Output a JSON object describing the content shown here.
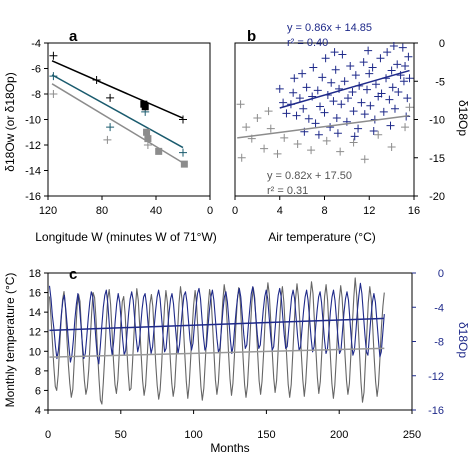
{
  "chart_data": [
    {
      "type": "scatter",
      "panel_label": "a",
      "xlabel": "Longitude W (minutes W of 71°W)",
      "ylabel": "δ18Ow (or δ18Op)",
      "xlim": [
        120,
        0
      ],
      "ylim": [
        -16,
        -4
      ],
      "xticks": [
        "120",
        "80",
        "40",
        "0"
      ],
      "yticks": [
        "-4",
        "-6",
        "-8",
        "-10",
        "-12",
        "-14",
        "-16"
      ],
      "series": [
        {
          "marker": "plus",
          "color": "#000000",
          "points": [
            [
              116,
              -5.0
            ],
            [
              84,
              -6.9
            ],
            [
              74,
              -8.3
            ],
            [
              20,
              -10.0
            ]
          ]
        },
        {
          "marker": "plus",
          "color": "#1a5b6e",
          "points": [
            [
              116,
              -6.6
            ],
            [
              74,
              -10.6
            ],
            [
              48,
              -9.4
            ],
            [
              20,
              -12.6
            ]
          ]
        },
        {
          "marker": "plus",
          "color": "#8c8c8c",
          "points": [
            [
              116,
              -8.0
            ],
            [
              76,
              -11.6
            ],
            [
              46,
              -12.0
            ]
          ]
        },
        {
          "marker": "square",
          "color": "#000000",
          "points": [
            [
              49,
              -8.8
            ],
            [
              48,
              -9.0
            ]
          ]
        },
        {
          "marker": "square",
          "color": "#8c8c8c",
          "points": [
            [
              47,
              -11.0
            ],
            [
              46,
              -11.5
            ],
            [
              38,
              -12.5
            ],
            [
              19,
              -13.5
            ]
          ]
        }
      ],
      "lines": [
        {
          "color": "#000000",
          "from": [
            117,
            -5.4
          ],
          "to": [
            20,
            -9.9
          ]
        },
        {
          "color": "#1a5b6e",
          "from": [
            117,
            -6.5
          ],
          "to": [
            20,
            -12.2
          ]
        },
        {
          "color": "#8c8c8c",
          "from": [
            117,
            -7.2
          ],
          "to": [
            20,
            -13.4
          ]
        }
      ]
    },
    {
      "type": "scatter",
      "panel_label": "b",
      "xlabel": "Air temperature (°C)",
      "ylabel_right": "δ18Op",
      "xlim": [
        0,
        16
      ],
      "ylim_right": [
        -20,
        0
      ],
      "xticks": [
        "0",
        "4",
        "8",
        "12",
        "16"
      ],
      "yticks_right": [
        "0",
        "-5",
        "-10",
        "-15",
        "-20"
      ],
      "annotations": {
        "blue_eq": "y = 0.86x + 14.85",
        "blue_r2": "r² = 0.40",
        "gray_eq": "y = 0.82x + 17.50",
        "gray_r2": "r² = 0.31"
      },
      "series": [
        {
          "name_hidden": "blue",
          "color": "#1f2a8a",
          "marker": "plus",
          "points": [
            [
              4.0,
              -6.0
            ],
            [
              4.3,
              -7.8
            ],
            [
              4.6,
              -9.2
            ],
            [
              5.0,
              -8.0
            ],
            [
              5.2,
              -6.5
            ],
            [
              5.5,
              -9.5
            ],
            [
              5.8,
              -7.2
            ],
            [
              6.0,
              -4.0
            ],
            [
              6.1,
              -8.6
            ],
            [
              6.4,
              -5.8
            ],
            [
              6.6,
              -9.9
            ],
            [
              6.9,
              -7.0
            ],
            [
              7.0,
              -3.2
            ],
            [
              7.2,
              -10.5
            ],
            [
              7.4,
              -6.2
            ],
            [
              7.6,
              -8.3
            ],
            [
              7.8,
              -4.5
            ],
            [
              8.0,
              -9.1
            ],
            [
              8.1,
              -2.0
            ],
            [
              8.3,
              -6.8
            ],
            [
              8.5,
              -11.0
            ],
            [
              8.6,
              -5.2
            ],
            [
              8.8,
              -7.6
            ],
            [
              9.0,
              -3.5
            ],
            [
              9.1,
              -9.8
            ],
            [
              9.3,
              -6.0
            ],
            [
              9.5,
              -8.0
            ],
            [
              9.6,
              -1.5
            ],
            [
              9.8,
              -5.0
            ],
            [
              10.0,
              -10.3
            ],
            [
              10.1,
              -7.2
            ],
            [
              10.3,
              -3.0
            ],
            [
              10.5,
              -6.4
            ],
            [
              10.6,
              -8.9
            ],
            [
              10.8,
              -4.2
            ],
            [
              11.0,
              -11.2
            ],
            [
              11.1,
              -5.6
            ],
            [
              11.3,
              -7.8
            ],
            [
              11.5,
              -2.5
            ],
            [
              11.6,
              -9.3
            ],
            [
              11.8,
              -6.1
            ],
            [
              12.0,
              -4.0
            ],
            [
              12.1,
              -8.2
            ],
            [
              12.3,
              -3.2
            ],
            [
              12.5,
              -10.0
            ],
            [
              12.6,
              -5.4
            ],
            [
              12.8,
              -7.0
            ],
            [
              13.0,
              -2.0
            ],
            [
              13.1,
              -6.6
            ],
            [
              13.3,
              -9.0
            ],
            [
              13.5,
              -4.6
            ],
            [
              13.6,
              -1.2
            ],
            [
              13.8,
              -7.4
            ],
            [
              14.0,
              -3.6
            ],
            [
              14.1,
              -5.8
            ],
            [
              14.3,
              -8.6
            ],
            [
              14.5,
              -2.8
            ],
            [
              14.6,
              -6.4
            ],
            [
              14.8,
              -4.2
            ],
            [
              15.0,
              -0.6
            ],
            [
              15.1,
              -5.0
            ],
            [
              15.2,
              -3.0
            ],
            [
              15.4,
              -7.2
            ],
            [
              15.5,
              -1.8
            ],
            [
              15.6,
              -4.6
            ],
            [
              6.2,
              -11.6
            ],
            [
              7.5,
              -12.0
            ],
            [
              9.2,
              -11.8
            ],
            [
              10.7,
              -12.2
            ],
            [
              12.4,
              -11.5
            ],
            [
              13.9,
              -10.8
            ],
            [
              15.3,
              -9.6
            ],
            [
              5.3,
              -4.6
            ],
            [
              8.9,
              -1.2
            ],
            [
              11.9,
              -1.0
            ],
            [
              14.2,
              -0.4
            ]
          ]
        },
        {
          "name_hidden": "gray",
          "color": "#8c8c8c",
          "marker": "plus",
          "points": [
            [
              0.5,
              -8.0
            ],
            [
              0.6,
              -15.0
            ],
            [
              1.0,
              -11.0
            ],
            [
              1.5,
              -12.5
            ],
            [
              2.0,
              -9.8
            ],
            [
              2.6,
              -13.8
            ],
            [
              3.2,
              -11.2
            ],
            [
              3.8,
              -14.5
            ],
            [
              4.4,
              -12.4
            ],
            [
              5.6,
              -13.2
            ],
            [
              6.8,
              -14.0
            ],
            [
              8.2,
              -12.8
            ],
            [
              9.4,
              -14.2
            ],
            [
              10.6,
              -13.0
            ],
            [
              11.6,
              -15.2
            ],
            [
              12.8,
              -12.0
            ],
            [
              14.0,
              -13.6
            ],
            [
              15.2,
              -11.0
            ],
            [
              15.6,
              -8.4
            ],
            [
              3.0,
              -8.9
            ]
          ]
        }
      ],
      "lines": [
        {
          "color": "#1f2a8a",
          "from": [
            4.0,
            -8.5
          ],
          "to": [
            15.6,
            -3.6
          ]
        },
        {
          "color": "#8c8c8c",
          "from": [
            0.2,
            -12.4
          ],
          "to": [
            15.6,
            -9.5
          ]
        }
      ]
    },
    {
      "type": "line",
      "panel_label": "c",
      "xlabel": "Months",
      "ylabel": "Monthly temperature (°C)",
      "ylabel_right": "δ18Op",
      "xlim": [
        0,
        250
      ],
      "ylim": [
        4,
        18
      ],
      "ylim_right": [
        -16,
        0
      ],
      "xticks": [
        "0",
        "50",
        "100",
        "150",
        "200",
        "250"
      ],
      "yticks": [
        "18",
        "16",
        "14",
        "12",
        "10",
        "8",
        "6",
        "4"
      ],
      "yticks_right": [
        "0",
        "-4",
        "-8",
        "-12",
        "-16"
      ],
      "temperature_series": {
        "color": "#666666",
        "x_start": 1,
        "x_end": 231,
        "values": [
          15.6,
          13.6,
          11.0,
          8.5,
          6.4,
          6.0,
          7.6,
          10.4,
          13.1,
          15.3,
          16.1,
          14.4,
          11.3,
          8.6,
          6.7,
          5.3,
          6.1,
          8.9,
          11.8,
          14.6,
          15.8,
          15.1,
          12.2,
          9.4,
          7.0,
          5.6,
          6.3,
          8.2,
          11.1,
          14.0,
          16.0,
          15.5,
          13.3,
          10.0,
          7.2,
          5.0,
          4.6,
          6.8,
          9.6,
          12.7,
          15.4,
          16.3,
          14.8,
          11.9,
          9.0,
          6.6,
          5.7,
          7.1,
          9.9,
          12.9,
          15.1,
          15.6,
          13.7,
          10.7,
          7.9,
          6.0,
          6.2,
          8.6,
          11.6,
          14.4,
          16.4,
          15.2,
          12.6,
          9.6,
          7.0,
          5.5,
          6.5,
          9.0,
          12.0,
          14.8,
          15.8,
          14.6,
          11.7,
          8.8,
          6.5,
          5.1,
          6.0,
          8.5,
          11.6,
          14.5,
          16.2,
          15.0,
          12.3,
          9.2,
          6.7,
          5.4,
          6.4,
          9.1,
          12.1,
          14.9,
          16.6,
          15.3,
          12.5,
          9.5,
          6.9,
          5.2,
          6.6,
          9.3,
          12.2,
          14.7,
          16.2,
          14.9,
          12.0,
          9.0,
          6.4,
          5.0,
          6.2,
          8.8,
          11.8,
          14.6,
          16.3,
          15.4,
          12.8,
          9.8,
          7.1,
          5.6,
          6.8,
          9.4,
          12.4,
          15.0,
          16.8,
          15.8,
          13.0,
          9.9,
          7.2,
          5.5,
          6.7,
          9.5,
          12.5,
          15.2,
          16.5,
          15.2,
          12.3,
          9.3,
          6.6,
          5.3,
          6.5,
          9.2,
          12.3,
          15.0,
          16.5,
          15.4,
          12.7,
          9.7,
          7.0,
          5.6,
          6.9,
          9.6,
          12.7,
          15.4,
          17.0,
          15.8,
          13.0,
          10.0,
          7.3,
          5.8,
          7.0,
          9.8,
          12.8,
          15.5,
          16.6,
          15.0,
          12.2,
          9.2,
          6.6,
          5.3,
          6.6,
          9.4,
          12.5,
          15.3,
          16.9,
          15.6,
          12.9,
          9.8,
          7.1,
          5.4,
          6.8,
          9.5,
          12.6,
          15.4,
          17.1,
          15.9,
          13.1,
          10.1,
          7.3,
          5.7,
          6.9,
          9.7,
          12.8,
          15.6,
          16.8,
          15.2,
          12.3,
          9.3,
          6.7,
          5.2,
          6.5,
          9.3,
          12.4,
          15.2,
          16.7,
          15.5,
          12.8,
          9.6,
          7.0,
          5.6,
          6.7,
          9.5,
          12.6,
          15.5,
          17.5,
          15.7,
          12.9,
          9.7,
          6.8,
          4.8,
          5.8,
          8.9,
          12.0,
          15.0,
          16.6,
          15.4,
          12.6,
          9.5,
          6.9,
          5.4,
          6.6,
          9.4,
          12.4,
          14.6,
          16.0
        ]
      },
      "d18o_series": {
        "color": "#1f2a8a",
        "x_start": 1,
        "x_end": 231,
        "values": [
          -1.5,
          -3.0,
          -5.0,
          -6.5,
          -8.5,
          -10.0,
          -9.0,
          -7.0,
          -4.8,
          -3.2,
          -2.6,
          -4.4,
          -6.4,
          -8.6,
          -10.4,
          -9.6,
          -7.8,
          -5.4,
          -3.6,
          -2.4,
          -3.8,
          -6.0,
          -8.2,
          -10.0,
          -9.4,
          -7.4,
          -5.2,
          -3.4,
          -2.2,
          -2.8,
          -5.0,
          -7.6,
          -9.8,
          -10.6,
          -8.6,
          -6.2,
          -4.0,
          -2.6,
          -2.0,
          -3.6,
          -6.0,
          -8.4,
          -9.6,
          -8.0,
          -5.6,
          -3.6,
          -2.4,
          -3.4,
          -5.6,
          -7.8,
          -9.6,
          -9.0,
          -6.8,
          -4.6,
          -3.0,
          -2.2,
          -3.2,
          -5.4,
          -7.6,
          -9.2,
          -8.4,
          -6.2,
          -4.2,
          -2.8,
          -2.4,
          -3.8,
          -6.0,
          -8.0,
          -9.4,
          -8.6,
          -6.4,
          -4.4,
          -2.8,
          -2.0,
          -3.0,
          -5.2,
          -7.4,
          -9.2,
          -8.8,
          -6.6,
          -4.6,
          -3.0,
          -2.4,
          -3.6,
          -5.8,
          -7.8,
          -9.4,
          -8.4,
          -6.2,
          -4.2,
          -2.6,
          -2.2,
          -3.4,
          -5.6,
          -7.8,
          -9.0,
          -8.2,
          -6.0,
          -4.0,
          -2.4,
          -1.8,
          -3.0,
          -5.2,
          -7.4,
          -9.0,
          -8.6,
          -6.4,
          -4.4,
          -2.8,
          -2.0,
          -3.2,
          -5.4,
          -7.6,
          -9.2,
          -8.8,
          -6.6,
          -4.4,
          -2.8,
          -2.2,
          -3.4,
          -5.6,
          -7.8,
          -9.4,
          -8.4,
          -6.2,
          -4.2,
          -2.6,
          -1.8,
          -2.8,
          -5.0,
          -7.2,
          -8.8,
          -8.4,
          -6.2,
          -4.2,
          -2.4,
          -1.6,
          -2.8,
          -5.0,
          -7.2,
          -8.8,
          -8.4,
          -6.4,
          -4.4,
          -2.8,
          -2.0,
          -3.0,
          -5.2,
          -7.4,
          -9.0,
          -8.6,
          -6.4,
          -4.2,
          -2.6,
          -1.8,
          -2.8,
          -5.0,
          -7.2,
          -8.8,
          -8.6,
          -6.6,
          -4.6,
          -2.8,
          -2.0,
          -3.0,
          -5.2,
          -7.4,
          -9.0,
          -8.6,
          -6.4,
          -4.4,
          -2.8,
          -2.0,
          -3.2,
          -5.4,
          -7.6,
          -9.2,
          -8.6,
          -6.4,
          -4.4,
          -2.8,
          -2.2,
          -3.4,
          -5.6,
          -7.8,
          -9.4,
          -8.8,
          -6.6,
          -4.4,
          -2.8,
          -2.0,
          -3.2,
          -5.4,
          -7.6,
          -9.4,
          -9.0,
          -6.8,
          -4.6,
          -3.0,
          -2.2,
          -3.2,
          -5.6,
          -7.8,
          -9.6,
          -9.0,
          -6.8,
          -4.4,
          -2.6,
          -1.2,
          -2.4,
          -4.8,
          -7.2,
          -9.2,
          -9.6,
          -7.4,
          -5.2,
          -3.4,
          -2.4,
          -3.4,
          -5.6,
          -7.8,
          -9.8,
          -9.2,
          -7.0,
          -4.8
        ]
      },
      "trend_lines": [
        {
          "color": "#1f2a8a",
          "axis": "right",
          "from": [
            1,
            -6.7
          ],
          "to": [
            231,
            -5.3
          ]
        },
        {
          "color": "#999999",
          "axis": "left",
          "from": [
            1,
            9.4
          ],
          "to": [
            231,
            10.3
          ]
        }
      ]
    }
  ]
}
